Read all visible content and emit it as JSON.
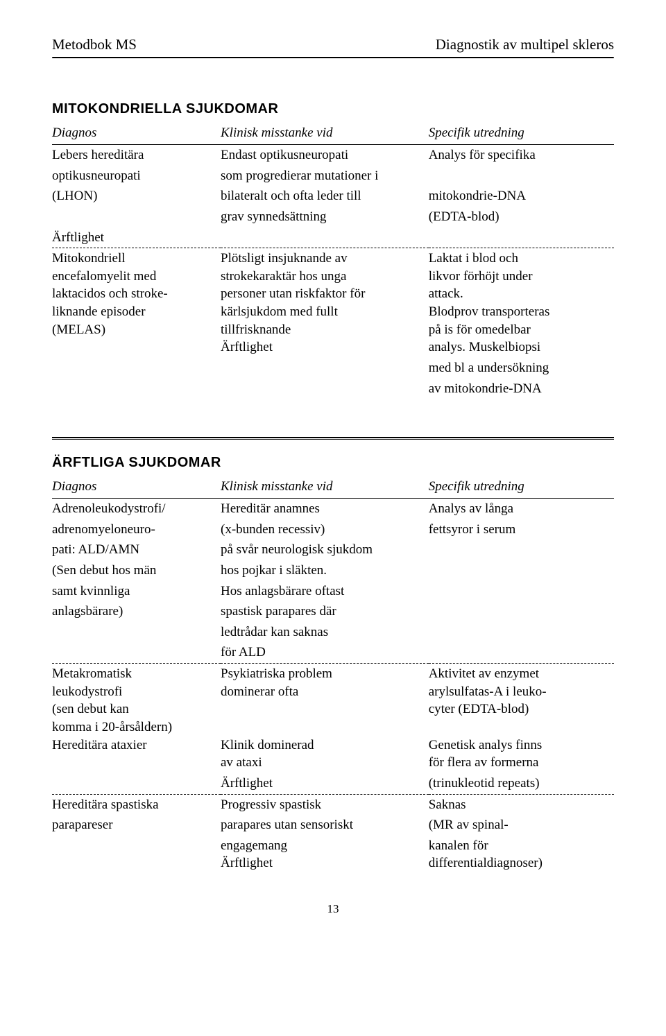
{
  "header": {
    "left": "Metodbok MS",
    "right": "Diagnostik av multipel skleros"
  },
  "section1": {
    "title": "MITOKONDRIELLA SJUKDOMAR",
    "columns": [
      "Diagnos",
      "Klinisk misstanke vid",
      "Specifik utredning"
    ],
    "rows": [
      {
        "c1": "Lebers hereditära",
        "c2": "Endast optikusneuropati",
        "c3": "Analys för specifika"
      },
      {
        "c1": "optikusneuropati",
        "c2": "som progredierar mutationer i",
        "c3": ""
      },
      {
        "c1": "(LHON)",
        "c2": "bilateralt och ofta leder till",
        "c3": "mitokondrie-DNA"
      },
      {
        "c1": "",
        "c2": "grav synnedsättning",
        "c3": "(EDTA-blod)"
      },
      {
        "c1": "Ärftlighet",
        "c2": "",
        "c3": ""
      }
    ],
    "rows2": [
      {
        "c1": "Mitokondriell\nencefalomyelit med\nlaktacidos och stroke-\nliknande episoder\n(MELAS)",
        "c2": "Plötsligt insjuknande av\nstrokekaraktär hos unga\npersoner utan riskfaktor för\nkärlsjukdom med fullt\ntillfrisknande\nÄrftlighet",
        "c3": "Laktat i blod och\nlikvor förhöjt under\nattack.\nBlodprov transporteras\npå is för omedelbar\nanalys. Muskelbiopsi"
      },
      {
        "c1": "",
        "c2": "",
        "c3": "med bl a undersökning"
      },
      {
        "c1": "",
        "c2": "",
        "c3": "av mitokondrie-DNA"
      }
    ]
  },
  "section2": {
    "title": "ÄRFTLIGA SJUKDOMAR",
    "columns": [
      "Diagnos",
      "Klinisk misstanke vid",
      "Specifik utredning"
    ],
    "rowsA": [
      {
        "c1": "Adrenoleukodystrofi/",
        "c2": "Hereditär anamnes",
        "c3": "Analys av långa"
      },
      {
        "c1": "adrenomyeloneuro-",
        "c2": "(x-bunden recessiv)",
        "c3": "fettsyror i serum"
      },
      {
        "c1": "pati: ALD/AMN",
        "c2": "på svår neurologisk sjukdom",
        "c3": ""
      },
      {
        "c1": "(Sen debut hos män",
        "c2": "hos pojkar i släkten.",
        "c3": ""
      },
      {
        "c1": "samt kvinnliga",
        "c2": "Hos anlagsbärare oftast",
        "c3": ""
      },
      {
        "c1": "anlagsbärare)",
        "c2": "spastisk parapares där",
        "c3": ""
      },
      {
        "c1": "",
        "c2": "ledtrådar kan saknas",
        "c3": ""
      },
      {
        "c1": "",
        "c2": "för ALD",
        "c3": ""
      }
    ],
    "rowsB": [
      {
        "c1": "Metakromatisk\nleukodystrofi\n(sen debut kan\nkomma i 20-årsåldern)\nHereditära ataxier",
        "c2": "Psykiatriska problem\ndominerar ofta\n\n\nKlinik dominerad\nav ataxi",
        "c3": "Aktivitet av enzymet\narylsulfatas-A i leuko-\ncyter (EDTA-blod)\n\nGenetisk analys finns\nför flera av formerna"
      },
      {
        "c1": "",
        "c2": "Ärftlighet",
        "c3": "(trinukleotid repeats)"
      }
    ],
    "rowsC": [
      {
        "c1": "Hereditära spastiska",
        "c2": "Progressiv spastisk",
        "c3": "Saknas"
      },
      {
        "c1": "parapareser",
        "c2": "parapares utan sensoriskt",
        "c3": "(MR av spinal-"
      },
      {
        "c1": "",
        "c2": "engagemang\nÄrftlighet",
        "c3": "kanalen för\ndifferentialdiagnoser)"
      }
    ]
  },
  "pagenum": "13"
}
